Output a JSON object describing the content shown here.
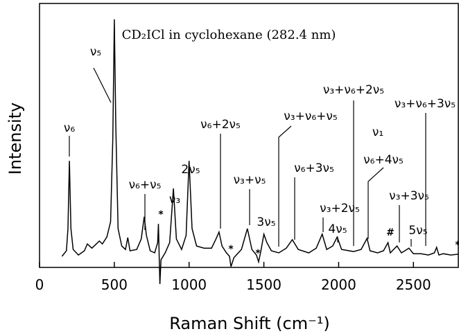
{
  "chart_data": {
    "type": "line",
    "title": "CD₂ICl in cyclohexane (282.4 nm)",
    "x_label": "Raman Shift (cm⁻¹)",
    "y_label": "Intensity",
    "color": "#000000",
    "xlim": [
      0,
      2800
    ],
    "xticks": [
      0,
      500,
      1000,
      1500,
      2000,
      2500
    ],
    "ylim": [
      0,
      100
    ],
    "x": [
      150,
      180,
      190,
      200,
      210,
      225,
      260,
      300,
      320,
      350,
      380,
      400,
      420,
      450,
      475,
      490,
      500,
      510,
      525,
      550,
      575,
      590,
      605,
      650,
      680,
      700,
      715,
      740,
      770,
      790,
      795,
      800,
      805,
      812,
      840,
      870,
      895,
      915,
      950,
      980,
      1000,
      1020,
      1050,
      1100,
      1150,
      1180,
      1200,
      1220,
      1250,
      1270,
      1280,
      1300,
      1350,
      1390,
      1420,
      1450,
      1465,
      1480,
      1500,
      1520,
      1550,
      1600,
      1650,
      1690,
      1730,
      1800,
      1850,
      1890,
      1920,
      1960,
      1990,
      2020,
      2100,
      2150,
      2190,
      2210,
      2260,
      2300,
      2330,
      2345,
      2390,
      2420,
      2470,
      2500,
      2550,
      2600,
      2640,
      2655,
      2670,
      2700,
      2750,
      2800
    ],
    "values": [
      4.2,
      6.3,
      14.7,
      40.4,
      14.7,
      6.8,
      4.7,
      6.3,
      8.9,
      7.3,
      8.9,
      10.0,
      8.9,
      11.5,
      17.3,
      48.8,
      94.0,
      54.1,
      14.7,
      8.1,
      6.8,
      11.3,
      6.3,
      6.8,
      10.8,
      19.2,
      12.1,
      6.3,
      5.5,
      9.4,
      16.5,
      4.2,
      -6.3,
      2.9,
      5.5,
      9.4,
      29.9,
      10.8,
      6.8,
      12.1,
      40.4,
      14.7,
      8.1,
      7.3,
      7.3,
      10.8,
      13.4,
      8.1,
      5.5,
      4.2,
      0.3,
      3.7,
      6.8,
      14.7,
      6.8,
      4.7,
      2.1,
      6.3,
      12.6,
      9.4,
      6.3,
      5.5,
      7.3,
      10.5,
      6.8,
      5.5,
      7.3,
      12.6,
      6.8,
      8.1,
      11.5,
      6.8,
      6.0,
      6.8,
      11.0,
      6.3,
      5.5,
      6.3,
      9.4,
      5.5,
      8.1,
      5.5,
      7.3,
      5.2,
      5.2,
      4.7,
      5.5,
      7.6,
      4.7,
      5.2,
      4.7,
      5.0
    ],
    "annotations": [
      "ν₆",
      "ν₅",
      "ν₆+ν₅",
      "ν₃",
      "2ν₅",
      "ν₆+2ν₅",
      "ν₃+ν₅",
      "3ν₅",
      "ν₃+ν₆+ν₅",
      "ν₆+3ν₅",
      "ν₃+2ν₅",
      "4ν₅",
      "ν₃+ν₆+2ν₅",
      "ν₁",
      "ν₆+4ν₅",
      "ν₃+3ν₅",
      "5ν₅",
      "ν₃+ν₆+3ν₅",
      "*",
      "*",
      "*",
      "*",
      "#"
    ]
  }
}
